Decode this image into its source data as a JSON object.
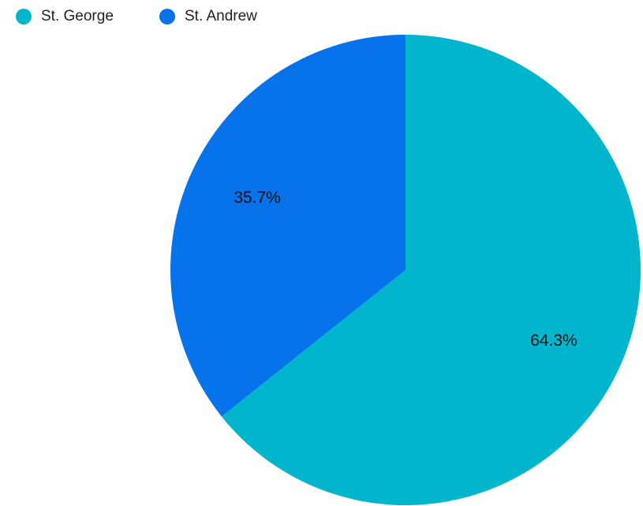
{
  "chart_data": {
    "type": "pie",
    "title": "",
    "categories": [
      "St. George",
      "St. Andrew"
    ],
    "values": [
      64.3,
      35.7
    ],
    "labels": [
      "64.3%",
      "35.7%"
    ],
    "colors": [
      "#00b5cc",
      "#0673ea"
    ],
    "start_angle_deg": 0,
    "direction": "clockwise",
    "legend_position": "top-left"
  }
}
